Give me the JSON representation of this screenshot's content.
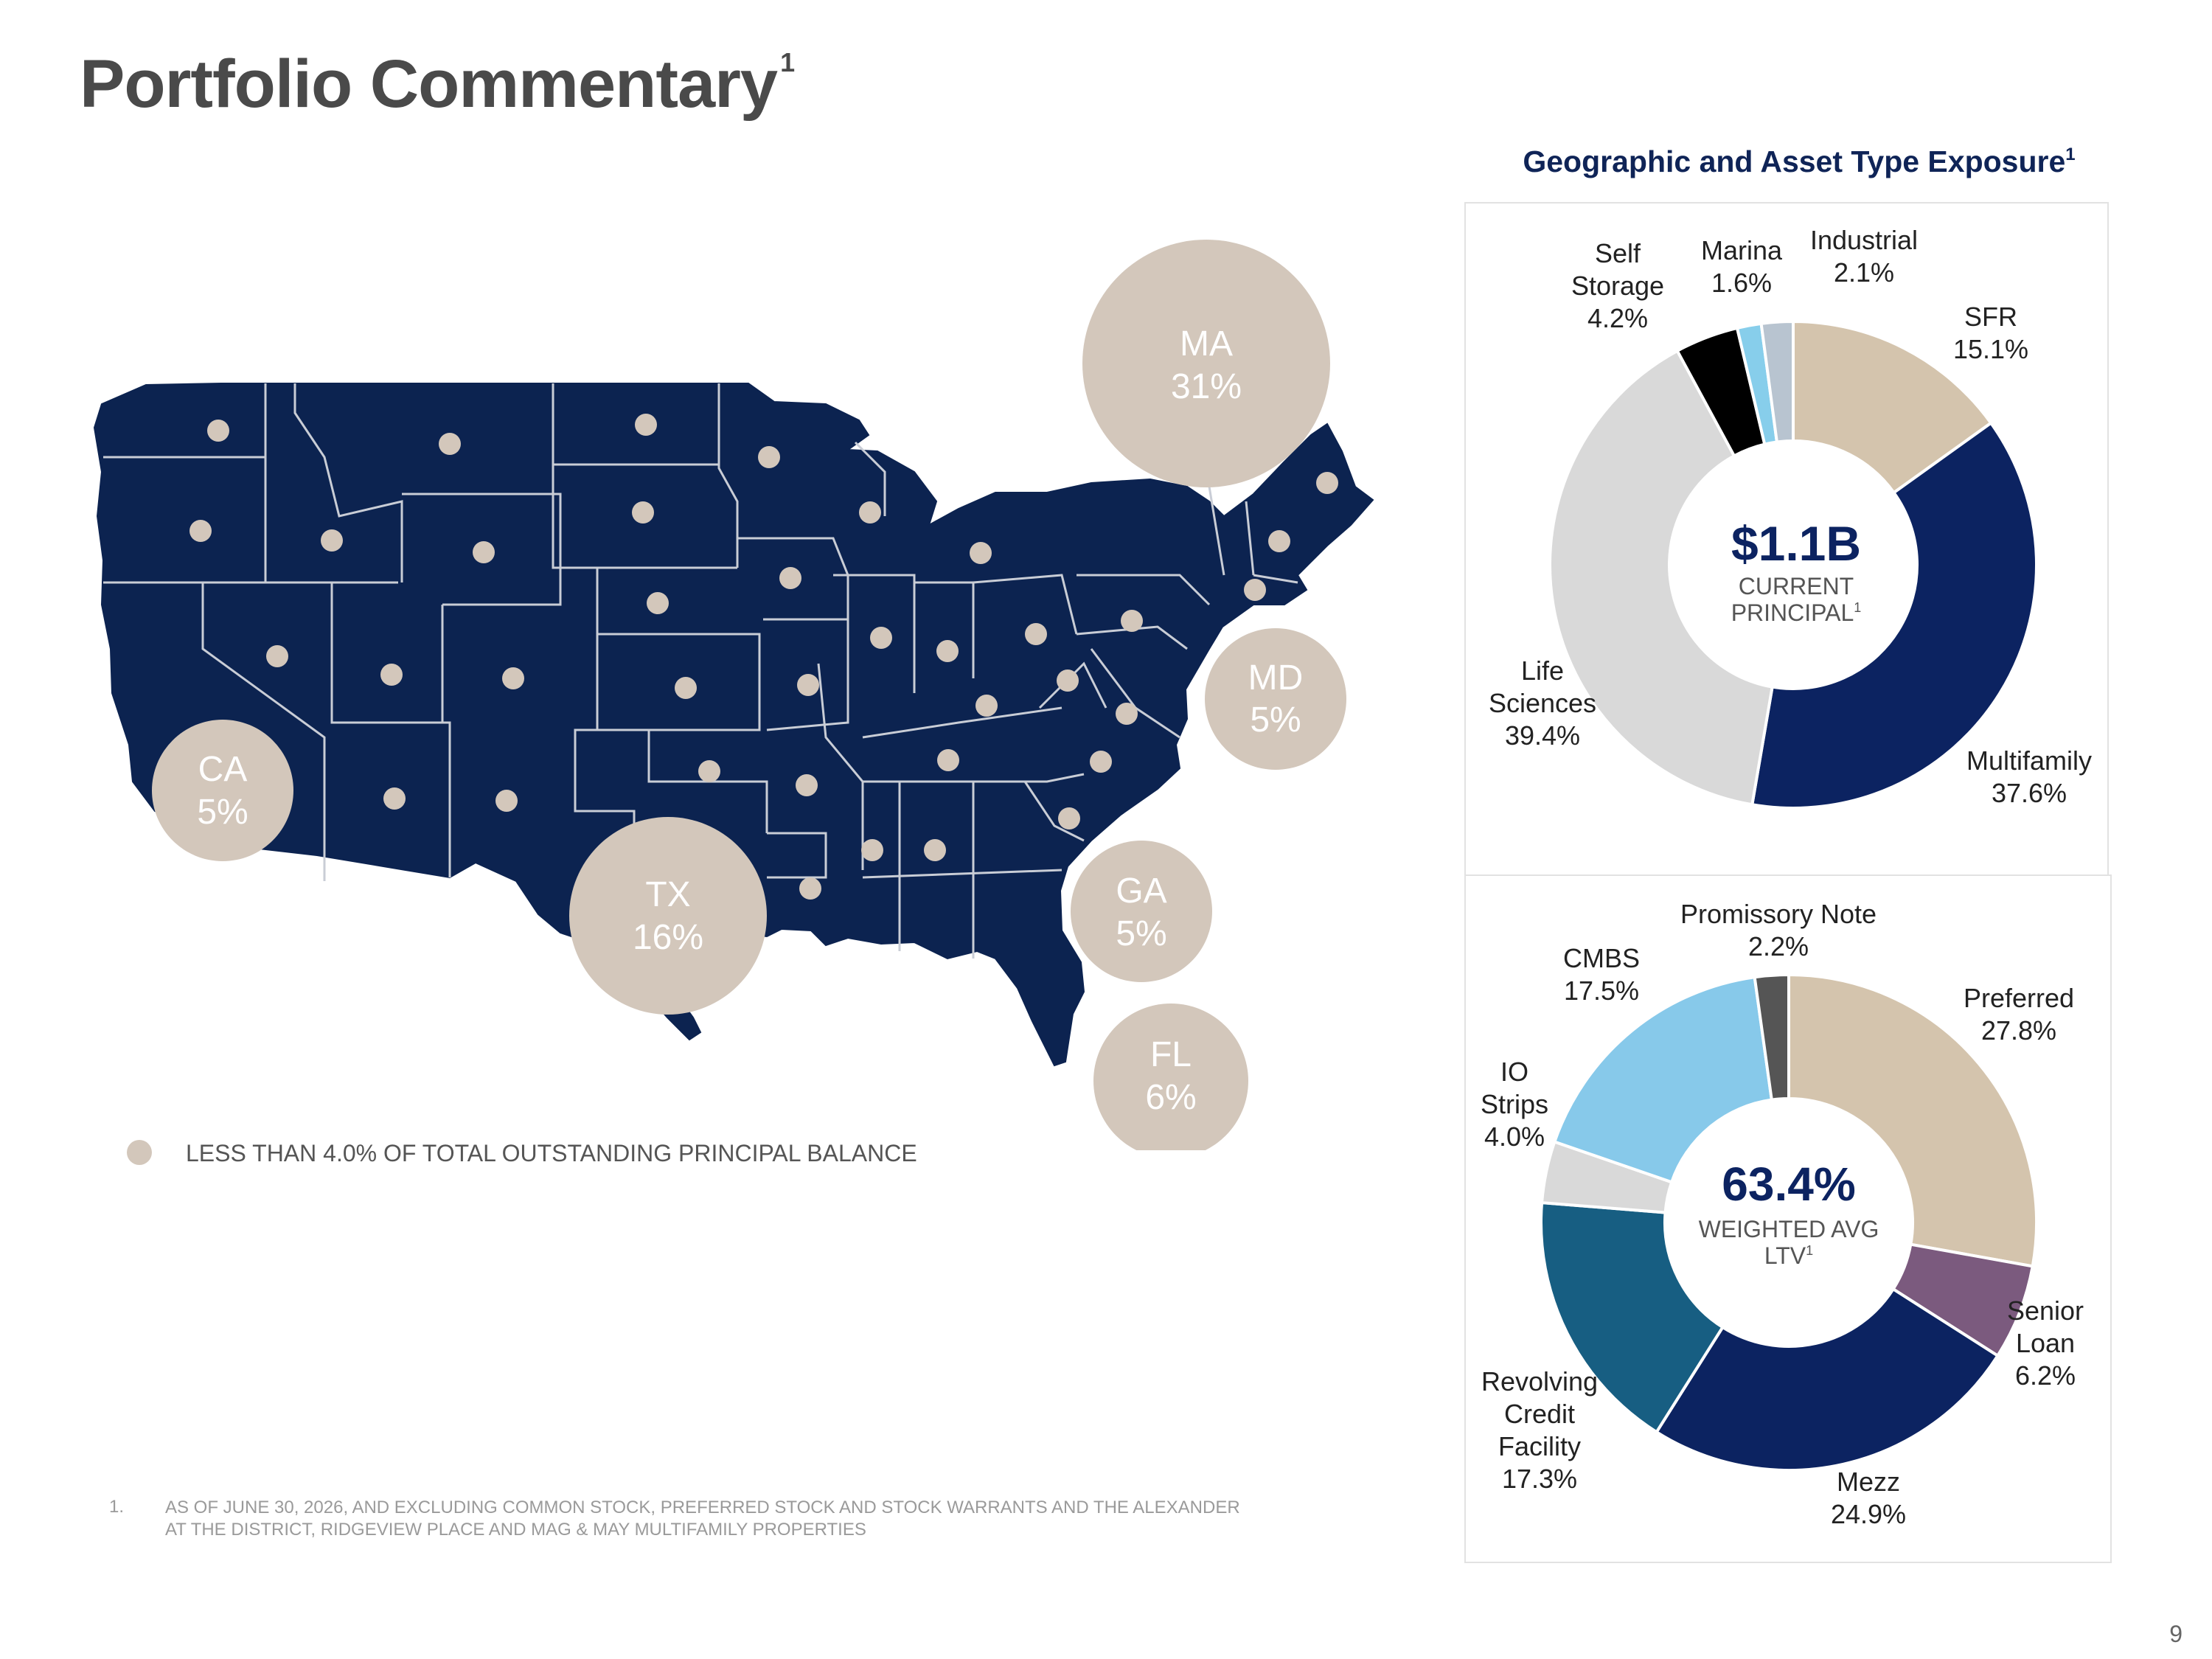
{
  "page": {
    "title": "Portfolio Commentary",
    "title_sup": "1",
    "page_number": "9"
  },
  "map": {
    "bubbles": [
      {
        "state": "MA",
        "pct": "31%"
      },
      {
        "state": "MD",
        "pct": "5%"
      },
      {
        "state": "CA",
        "pct": "5%"
      },
      {
        "state": "TX",
        "pct": "16%"
      },
      {
        "state": "GA",
        "pct": "5%"
      },
      {
        "state": "FL",
        "pct": "6%"
      }
    ],
    "legend_text": "LESS THAN 4.0% OF TOTAL OUTSTANDING PRINCIPAL BALANCE",
    "colors": {
      "land": "#0c2350",
      "border": "#c9cdd6",
      "bubble": "#d3c7bb",
      "dot": "#d3c7bb"
    }
  },
  "footnote": {
    "number": "1.",
    "line1": "AS OF JUNE 30, 2026, AND EXCLUDING COMMON STOCK, PREFERRED STOCK AND STOCK WARRANTS AND THE ALEXANDER",
    "line2": "AT THE DISTRICT, RIDGEVIEW PLACE AND MAG & MAY MULTIFAMILY PROPERTIES"
  },
  "chart_data": [
    {
      "type": "pie",
      "title": "Geographic and Asset Type Exposure",
      "title_sup": "1",
      "center_value": "$1.1B",
      "center_label_1": "CURRENT",
      "center_label_2": "PRINCIPAL",
      "center_sup": "1",
      "slices": [
        {
          "label": "SFR",
          "value": 15.1,
          "value_text": "15.1%",
          "color": "#d4c4ad"
        },
        {
          "label": "Multifamily",
          "value": 37.6,
          "value_text": "37.6%",
          "color": "#0c2361"
        },
        {
          "label": "Life Sciences",
          "value": 39.4,
          "value_text": "39.4%",
          "color": "#d9d9d9"
        },
        {
          "label": "Self Storage",
          "value": 4.2,
          "value_text": "4.2%",
          "color": "#000000"
        },
        {
          "label": "Marina",
          "value": 1.6,
          "value_text": "1.6%",
          "color": "#87ceeb"
        },
        {
          "label": "Industrial",
          "value": 2.1,
          "value_text": "2.1%",
          "color": "#b8c4d0"
        }
      ]
    },
    {
      "type": "pie",
      "center_value": "63.4%",
      "center_label_1": "WEIGHTED AVG",
      "center_label_2": "LTV",
      "center_sup": "1",
      "slices": [
        {
          "label": "Preferred",
          "value": 27.8,
          "value_text": "27.8%",
          "color": "#d4c4ad"
        },
        {
          "label": "Senior Loan",
          "value": 6.2,
          "value_text": "6.2%",
          "color": "#7b5a7e"
        },
        {
          "label": "Mezz",
          "value": 24.9,
          "value_text": "24.9%",
          "color": "#0c2361"
        },
        {
          "label": "Revolving Credit Facility",
          "value": 17.3,
          "value_text": "17.3%",
          "color": "#175e82"
        },
        {
          "label": "IO Strips",
          "value": 4.0,
          "value_text": "4.0%",
          "color": "#d9d9d9"
        },
        {
          "label": "CMBS",
          "value": 17.5,
          "value_text": "17.5%",
          "color": "#87c9ea"
        },
        {
          "label": "Promissory Note",
          "value": 2.2,
          "value_text": "2.2%",
          "color": "#555555"
        }
      ]
    }
  ]
}
